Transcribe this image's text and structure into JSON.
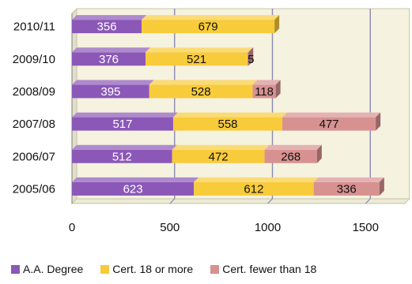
{
  "chart_data": {
    "type": "bar",
    "orientation": "horizontal",
    "stacked": true,
    "style": "3d",
    "title": "",
    "xlabel": "",
    "ylabel": "",
    "categories": [
      "2010/11",
      "2009/10",
      "2008/09",
      "2007/08",
      "2006/07",
      "2005/06"
    ],
    "series": [
      {
        "name": "A.A. Degree",
        "color": "#8B58B8",
        "values": [
          356,
          376,
          395,
          517,
          512,
          623
        ]
      },
      {
        "name": "Cert. 18 or more",
        "color": "#F8CB3B",
        "values": [
          679,
          521,
          528,
          558,
          472,
          612
        ]
      },
      {
        "name": "Cert. fewer than 18",
        "color": "#D89191",
        "values": [
          0,
          5,
          118,
          477,
          268,
          336
        ]
      }
    ],
    "data_labels": [
      [
        "356",
        "679",
        ""
      ],
      [
        "376",
        "521",
        "5"
      ],
      [
        "395",
        "528",
        "118"
      ],
      [
        "517",
        "558",
        "477"
      ],
      [
        "512",
        "472",
        "268"
      ],
      [
        "623",
        "612",
        "336"
      ]
    ],
    "xlim": [
      0,
      1700
    ],
    "xticks": [
      0,
      500,
      1000,
      1500
    ],
    "xtick_labels": [
      "0",
      "500",
      "1000",
      "1500"
    ],
    "grid": true,
    "legend_position": "bottom",
    "background_color": "#ffffff",
    "plot_wall_color": "#F5F2E0",
    "plot_floor_color": "#EDEAD6",
    "gridline_color": "#8A8AB0"
  }
}
